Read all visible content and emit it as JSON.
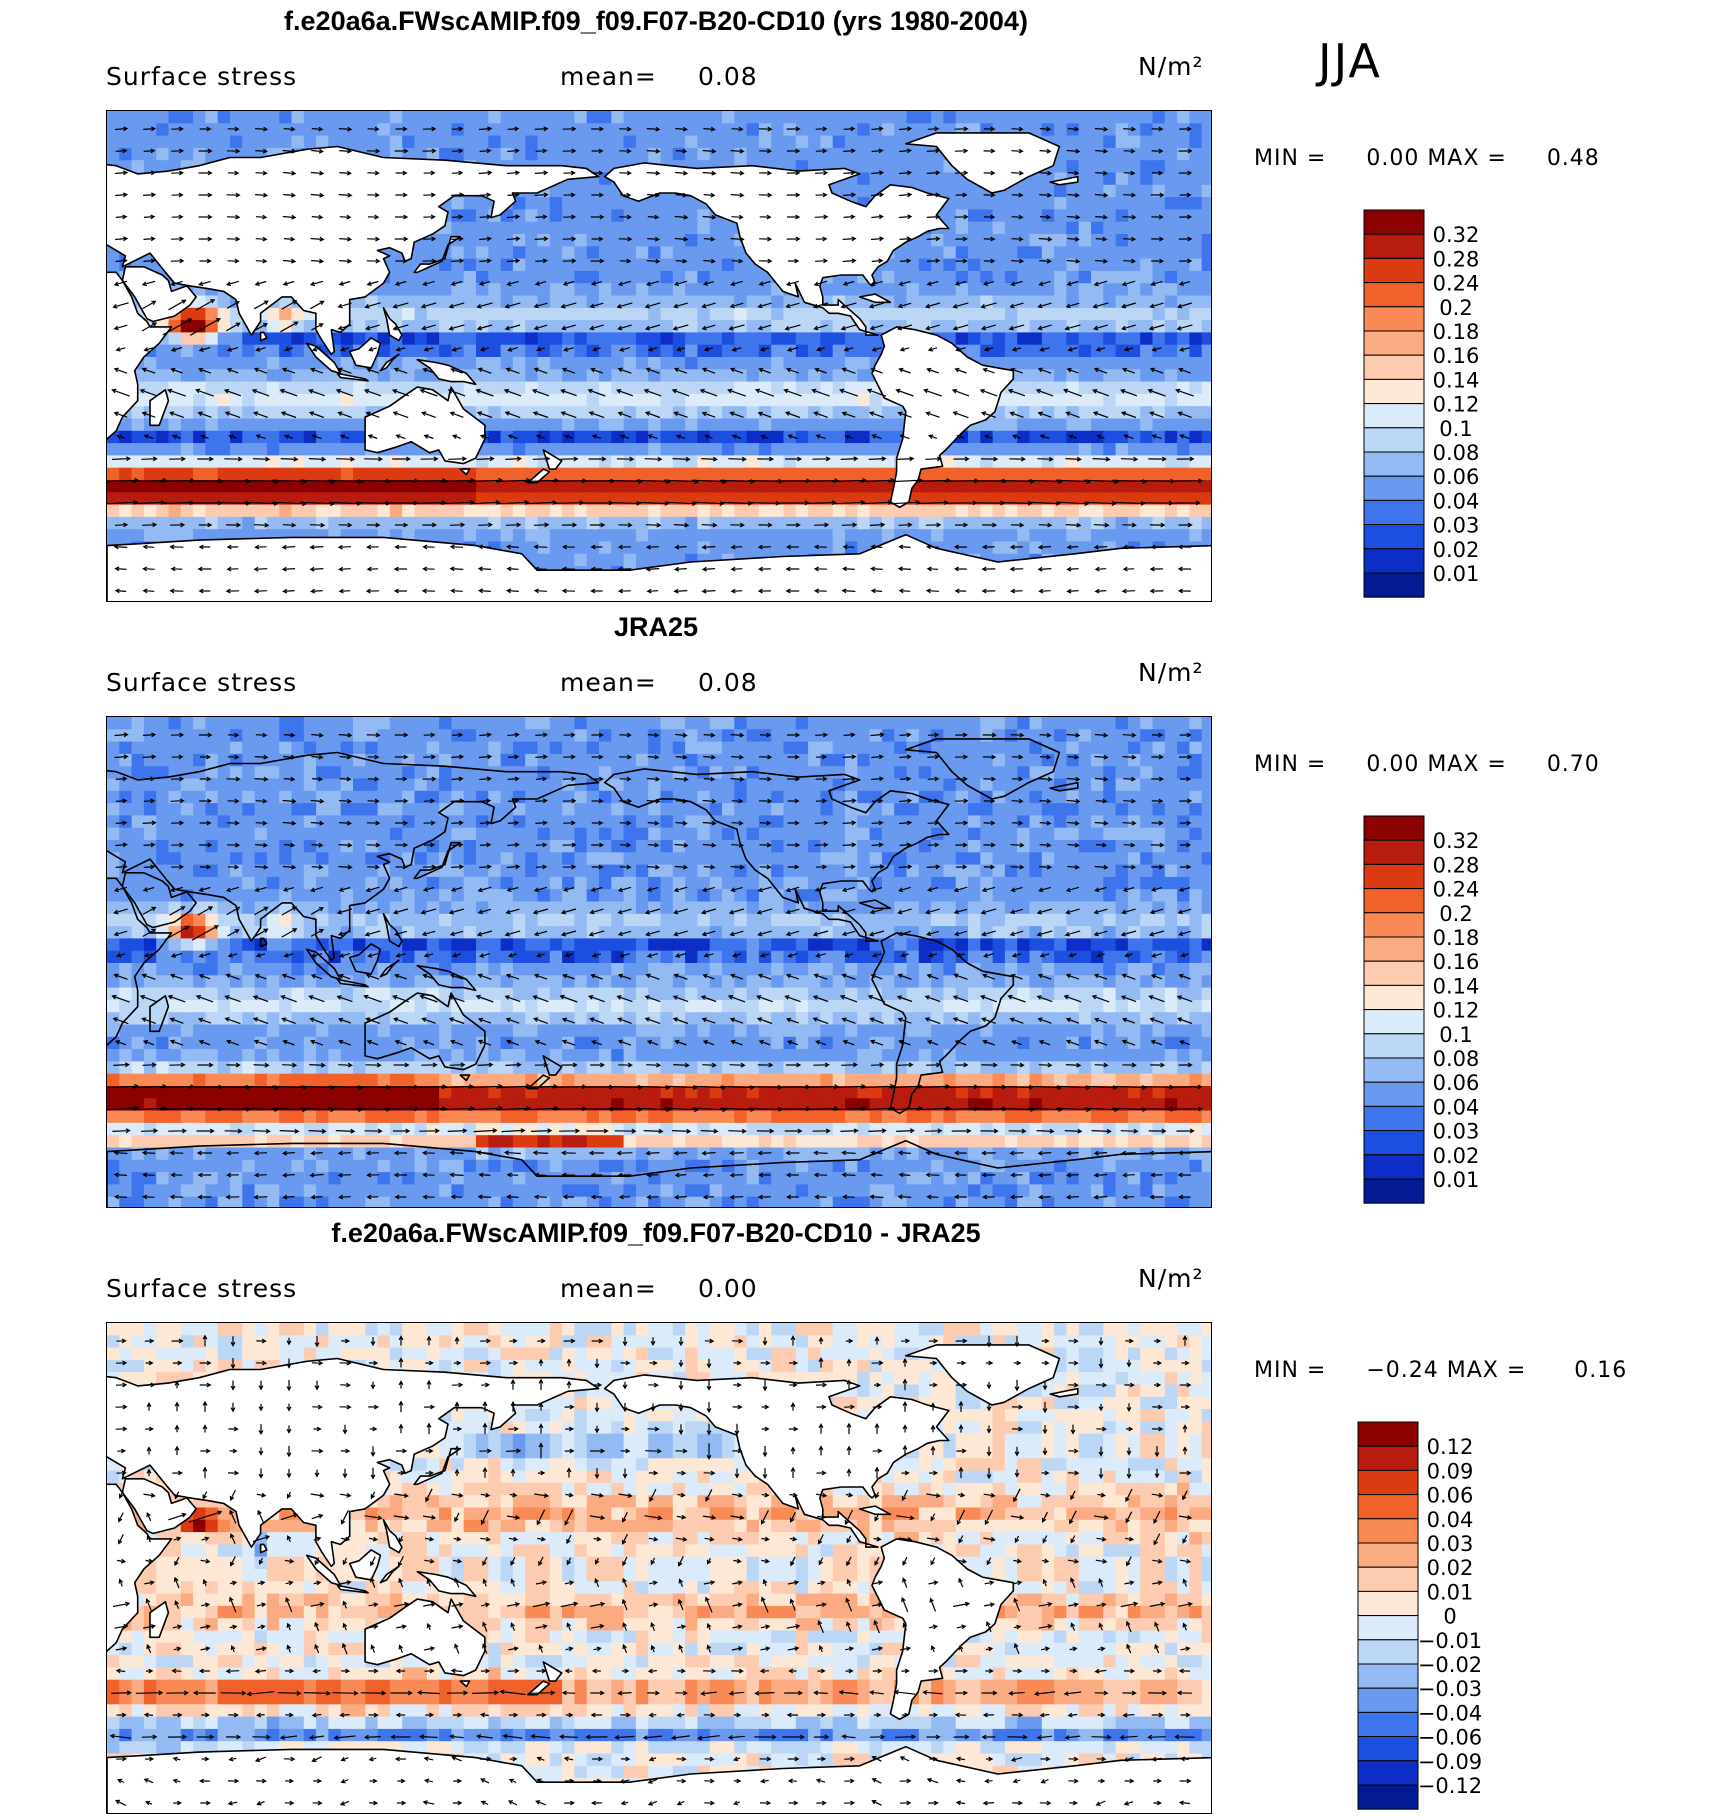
{
  "season": "JJA",
  "panels": [
    {
      "title": "f.e20a6a.FWscAMIP.f09_f09.F07-B20-CD10 (yrs 1980-2004)",
      "variable": "Surface stress",
      "mean_label": "mean=",
      "mean_value": "0.08",
      "units": "N/m²",
      "min_label": "MIN =",
      "min_value": "0.00",
      "max_label": "MAX =",
      "max_value": "0.48",
      "colorbar": {
        "labels": [
          "0.32",
          "0.28",
          "0.24",
          "0.2",
          "0.18",
          "0.16",
          "0.14",
          "0.12",
          "0.1",
          "0.08",
          "0.06",
          "0.04",
          "0.03",
          "0.02",
          "0.01"
        ],
        "colors": [
          "#8b0000",
          "#b71c0f",
          "#dc3a10",
          "#f0622a",
          "#f98a55",
          "#fbab82",
          "#fdcbb0",
          "#fde7d5",
          "#dcebf9",
          "#bcd6f6",
          "#94baf3",
          "#6a9af0",
          "#3e74ec",
          "#1c4ee0",
          "#0d2ec6",
          "#021b93"
        ]
      }
    },
    {
      "title": "JRA25",
      "variable": "Surface stress",
      "mean_label": "mean=",
      "mean_value": "0.08",
      "units": "N/m²",
      "min_label": "MIN =",
      "min_value": "0.00",
      "max_label": "MAX =",
      "max_value": "0.70",
      "colorbar": {
        "labels": [
          "0.32",
          "0.28",
          "0.24",
          "0.2",
          "0.18",
          "0.16",
          "0.14",
          "0.12",
          "0.1",
          "0.08",
          "0.06",
          "0.04",
          "0.03",
          "0.02",
          "0.01"
        ],
        "colors": [
          "#8b0000",
          "#b71c0f",
          "#dc3a10",
          "#f0622a",
          "#f98a55",
          "#fbab82",
          "#fdcbb0",
          "#fde7d5",
          "#dcebf9",
          "#bcd6f6",
          "#94baf3",
          "#6a9af0",
          "#3e74ec",
          "#1c4ee0",
          "#0d2ec6",
          "#021b93"
        ]
      }
    },
    {
      "title": "f.e20a6a.FWscAMIP.f09_f09.F07-B20-CD10 - JRA25",
      "variable": "Surface stress",
      "mean_label": "mean=",
      "mean_value": "0.00",
      "units": "N/m²",
      "min_label": "MIN =",
      "min_value": "−0.24",
      "max_label": "MAX =",
      "max_value": "0.16",
      "colorbar": {
        "labels": [
          "0.12",
          "0.09",
          "0.06",
          "0.04",
          "0.03",
          "0.02",
          "0.01",
          "0",
          "−0.01",
          "−0.02",
          "−0.03",
          "−0.04",
          "−0.06",
          "−0.09",
          "−0.12"
        ],
        "colors": [
          "#8b0000",
          "#b71c0f",
          "#dc3a10",
          "#f0622a",
          "#f98a55",
          "#fbab82",
          "#fdcbb0",
          "#fde7d5",
          "#dcebf9",
          "#bcd6f6",
          "#94baf3",
          "#6a9af0",
          "#3e74ec",
          "#1c4ee0",
          "#0d2ec6",
          "#021b93"
        ]
      }
    }
  ]
}
